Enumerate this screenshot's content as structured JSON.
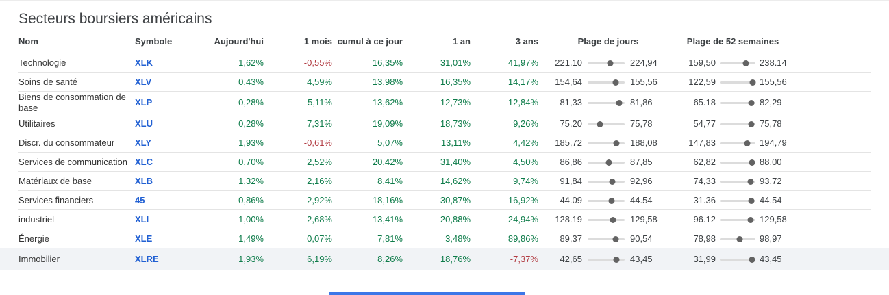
{
  "title": "Secteurs boursiers américains",
  "colors": {
    "positive_green": "#0E7C4A",
    "negative_red": "#B23C43",
    "symbol_link_blue": "#2160D3",
    "row_highlight": "#F1F3F6",
    "slider_track": "#DCDCDC",
    "slider_dot": "#636363",
    "header_border": "#6F6F6F",
    "row_border": "#E4E4E4",
    "scroll_indicator_blue": "#3C77E8"
  },
  "table": {
    "columns": [
      "Nom",
      "Symbole",
      "Aujourd'hui",
      "1 mois",
      "cumul à ce jour",
      "1 an",
      "3 ans",
      "Plage de jours",
      "Plage de 52 semaines"
    ],
    "rows": [
      {
        "name": "Technologie",
        "symbol": "XLK",
        "today": "1,62%",
        "m1": "-0,55%",
        "ytd": "16,35%",
        "y1": "31,01%",
        "y3": "41,97%",
        "day_low": "221.10",
        "day_high": "224,94",
        "day_pos": 0.62,
        "wk_low": "159,50",
        "wk_high": "238.14",
        "wk_pos": 0.74,
        "highlighted": false
      },
      {
        "name": "Soins de santé",
        "symbol": "XLV",
        "today": "0,43%",
        "m1": "4,59%",
        "ytd": "13,98%",
        "y1": "16,35%",
        "y3": "14,17%",
        "day_low": "154,64",
        "day_high": "155,56",
        "day_pos": 0.75,
        "wk_low": "122,59",
        "wk_high": "155,56",
        "wk_pos": 0.92,
        "highlighted": false
      },
      {
        "name": "Biens de consommation de base",
        "symbol": "XLP",
        "today": "0,28%",
        "m1": "5,11%",
        "ytd": "13,62%",
        "y1": "12,73%",
        "y3": "12,84%",
        "day_low": "81,33",
        "day_high": "81,86",
        "day_pos": 0.85,
        "wk_low": "65.18",
        "wk_high": "82,29",
        "wk_pos": 0.88,
        "highlighted": false
      },
      {
        "name": "Utilitaires",
        "symbol": "XLU",
        "today": "0,28%",
        "m1": "7,31%",
        "ytd": "19,09%",
        "y1": "18,73%",
        "y3": "9,26%",
        "day_low": "75,20",
        "day_high": "75,78",
        "day_pos": 0.33,
        "wk_low": "54,77",
        "wk_high": "75,78",
        "wk_pos": 0.89,
        "highlighted": false
      },
      {
        "name": "Discr. du consommateur",
        "symbol": "XLY",
        "today": "1,93%",
        "m1": "-0,61%",
        "ytd": "5,07%",
        "y1": "13,11%",
        "y3": "4,42%",
        "day_low": "185,72",
        "day_high": "188,08",
        "day_pos": 0.77,
        "wk_low": "147,83",
        "wk_high": "194,79",
        "wk_pos": 0.76,
        "highlighted": false
      },
      {
        "name": "Services de communication",
        "symbol": "XLC",
        "today": "0,70%",
        "m1": "2,52%",
        "ytd": "20,42%",
        "y1": "31,40%",
        "y3": "4,50%",
        "day_low": "86,86",
        "day_high": "87,85",
        "day_pos": 0.57,
        "wk_low": "62,82",
        "wk_high": "88,00",
        "wk_pos": 0.9,
        "highlighted": false
      },
      {
        "name": "Matériaux de base",
        "symbol": "XLB",
        "today": "1,32%",
        "m1": "2,16%",
        "ytd": "8,41%",
        "y1": "14,62%",
        "y3": "9,74%",
        "day_low": "91,84",
        "day_high": "92,96",
        "day_pos": 0.66,
        "wk_low": "74,33",
        "wk_high": "93,72",
        "wk_pos": 0.87,
        "highlighted": false
      },
      {
        "name": "Services financiers",
        "symbol": "45",
        "today": "0,86%",
        "m1": "2,92%",
        "ytd": "18,16%",
        "y1": "30,87%",
        "y3": "16,92%",
        "day_low": "44.09",
        "day_high": "44.54",
        "day_pos": 0.64,
        "wk_low": "31.36",
        "wk_high": "44.54",
        "wk_pos": 0.89,
        "highlighted": false
      },
      {
        "name": "industriel",
        "symbol": "XLI",
        "today": "1,00%",
        "m1": "2,68%",
        "ytd": "13,41%",
        "y1": "20,88%",
        "y3": "24,94%",
        "day_low": "128.19",
        "day_high": "129,58",
        "day_pos": 0.68,
        "wk_low": "96.12",
        "wk_high": "129,58",
        "wk_pos": 0.87,
        "highlighted": false
      },
      {
        "name": "Énergie",
        "symbol": "XLE",
        "today": "1,49%",
        "m1": "0,07%",
        "ytd": "7,81%",
        "y1": "3,48%",
        "y3": "89,86%",
        "day_low": "89,37",
        "day_high": "90,54",
        "day_pos": 0.75,
        "wk_low": "78,98",
        "wk_high": "98,97",
        "wk_pos": 0.55,
        "highlighted": false
      },
      {
        "name": "Immobilier",
        "symbol": "XLRE",
        "today": "1,93%",
        "m1": "6,19%",
        "ytd": "8,26%",
        "y1": "18,76%",
        "y3": "-7,37%",
        "day_low": "42,65",
        "day_high": "43,45",
        "day_pos": 0.77,
        "wk_low": "31,99",
        "wk_high": "43,45",
        "wk_pos": 0.9,
        "highlighted": true
      }
    ]
  }
}
